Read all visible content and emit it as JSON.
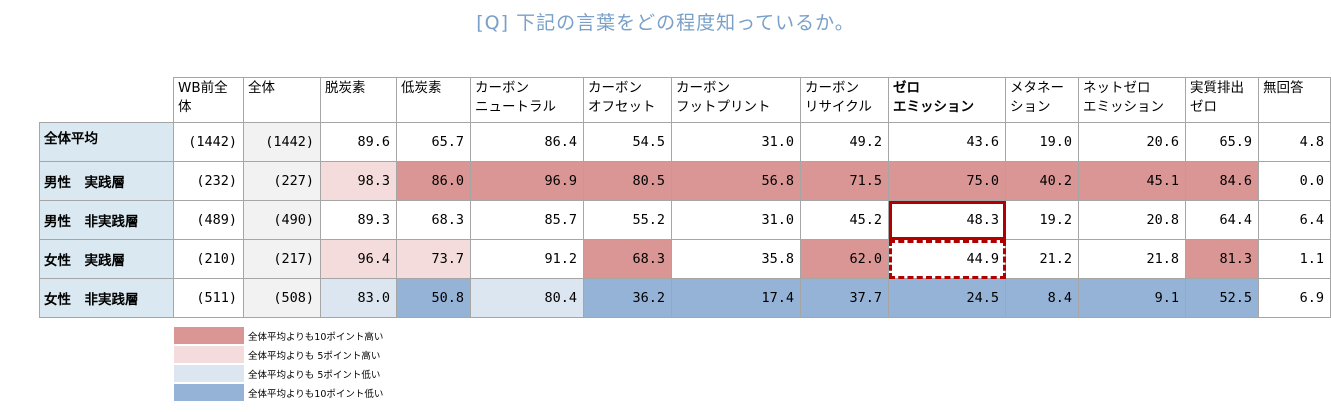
{
  "title": "[Q] 下記の言葉をどの程度知っているか。",
  "chart_data": {
    "type": "table",
    "columns": [
      {
        "label": "WB前全体",
        "bold": false
      },
      {
        "label": "全体",
        "bold": false
      },
      {
        "label": "脱炭素",
        "bold": false
      },
      {
        "label": "低炭素",
        "bold": false
      },
      {
        "label": "カーボン\nニュートラル",
        "bold": false
      },
      {
        "label": "カーボン\nオフセット",
        "bold": false
      },
      {
        "label": "カーボン\nフットプリント",
        "bold": false
      },
      {
        "label": "カーボン\nリサイクル",
        "bold": false
      },
      {
        "label": "ゼロ\nエミッション",
        "bold": true
      },
      {
        "label": "メタネー\nション",
        "bold": false
      },
      {
        "label": "ネットゼロ\nエミッション",
        "bold": false
      },
      {
        "label": "実質排出\nゼロ",
        "bold": false
      },
      {
        "label": "無回答",
        "bold": false
      }
    ],
    "rows": [
      {
        "label": "全体平均",
        "n_before": "(1442)",
        "n_total": "(1442)",
        "values": [
          "89.6",
          "65.7",
          "86.4",
          "54.5",
          "31.0",
          "49.2",
          "43.6",
          "19.0",
          "20.6",
          "65.9",
          "4.8"
        ],
        "classes": [
          "",
          "",
          "",
          "",
          "",
          "",
          "",
          "",
          "",
          "",
          ""
        ]
      },
      {
        "label": "男性　実践層",
        "n_before": "(232)",
        "n_total": "(227)",
        "values": [
          "98.3",
          "86.0",
          "96.9",
          "80.5",
          "56.8",
          "71.5",
          "75.0",
          "40.2",
          "45.1",
          "84.6",
          "0.0"
        ],
        "classes": [
          "hi5",
          "hi10",
          "hi10",
          "hi10",
          "hi10",
          "hi10",
          "hi10",
          "hi10",
          "hi10",
          "hi10",
          ""
        ]
      },
      {
        "label": "男性　非実践層",
        "n_before": "(489)",
        "n_total": "(490)",
        "values": [
          "89.3",
          "68.3",
          "85.7",
          "55.2",
          "31.0",
          "45.2",
          "48.3",
          "19.2",
          "20.8",
          "64.4",
          "6.4"
        ],
        "classes": [
          "",
          "",
          "",
          "",
          "",
          "",
          "",
          "",
          "",
          "",
          ""
        ]
      },
      {
        "label": "女性　実践層",
        "n_before": "(210)",
        "n_total": "(217)",
        "values": [
          "96.4",
          "73.7",
          "91.2",
          "68.3",
          "35.8",
          "62.0",
          "44.9",
          "21.2",
          "21.8",
          "81.3",
          "1.1"
        ],
        "classes": [
          "hi5",
          "hi5",
          "",
          "hi10",
          "",
          "hi10",
          "",
          "",
          "",
          "hi10",
          ""
        ]
      },
      {
        "label": "女性　非実践層",
        "n_before": "(511)",
        "n_total": "(508)",
        "values": [
          "83.0",
          "50.8",
          "80.4",
          "36.2",
          "17.4",
          "37.7",
          "24.5",
          "8.4",
          "9.1",
          "52.5",
          "6.9"
        ],
        "classes": [
          "lo5",
          "lo10",
          "lo5",
          "lo10",
          "lo10",
          "lo10",
          "lo10",
          "lo10",
          "lo10",
          "lo10",
          ""
        ]
      }
    ],
    "highlights": [
      {
        "row": 2,
        "col": 6,
        "style": "solid",
        "color": "#b00000"
      },
      {
        "row": 3,
        "col": 6,
        "style": "dashed",
        "color": "#b00000"
      }
    ]
  },
  "legend": [
    {
      "label": "全体平均よりも10ポイント高い",
      "color": "#da9694"
    },
    {
      "label": "全体平均よりも 5ポイント高い",
      "color": "#f3dcdb"
    },
    {
      "label": "全体平均よりも 5ポイント低い",
      "color": "#dce6f1"
    },
    {
      "label": "全体平均よりも10ポイント低い",
      "color": "#95b3d7"
    }
  ]
}
